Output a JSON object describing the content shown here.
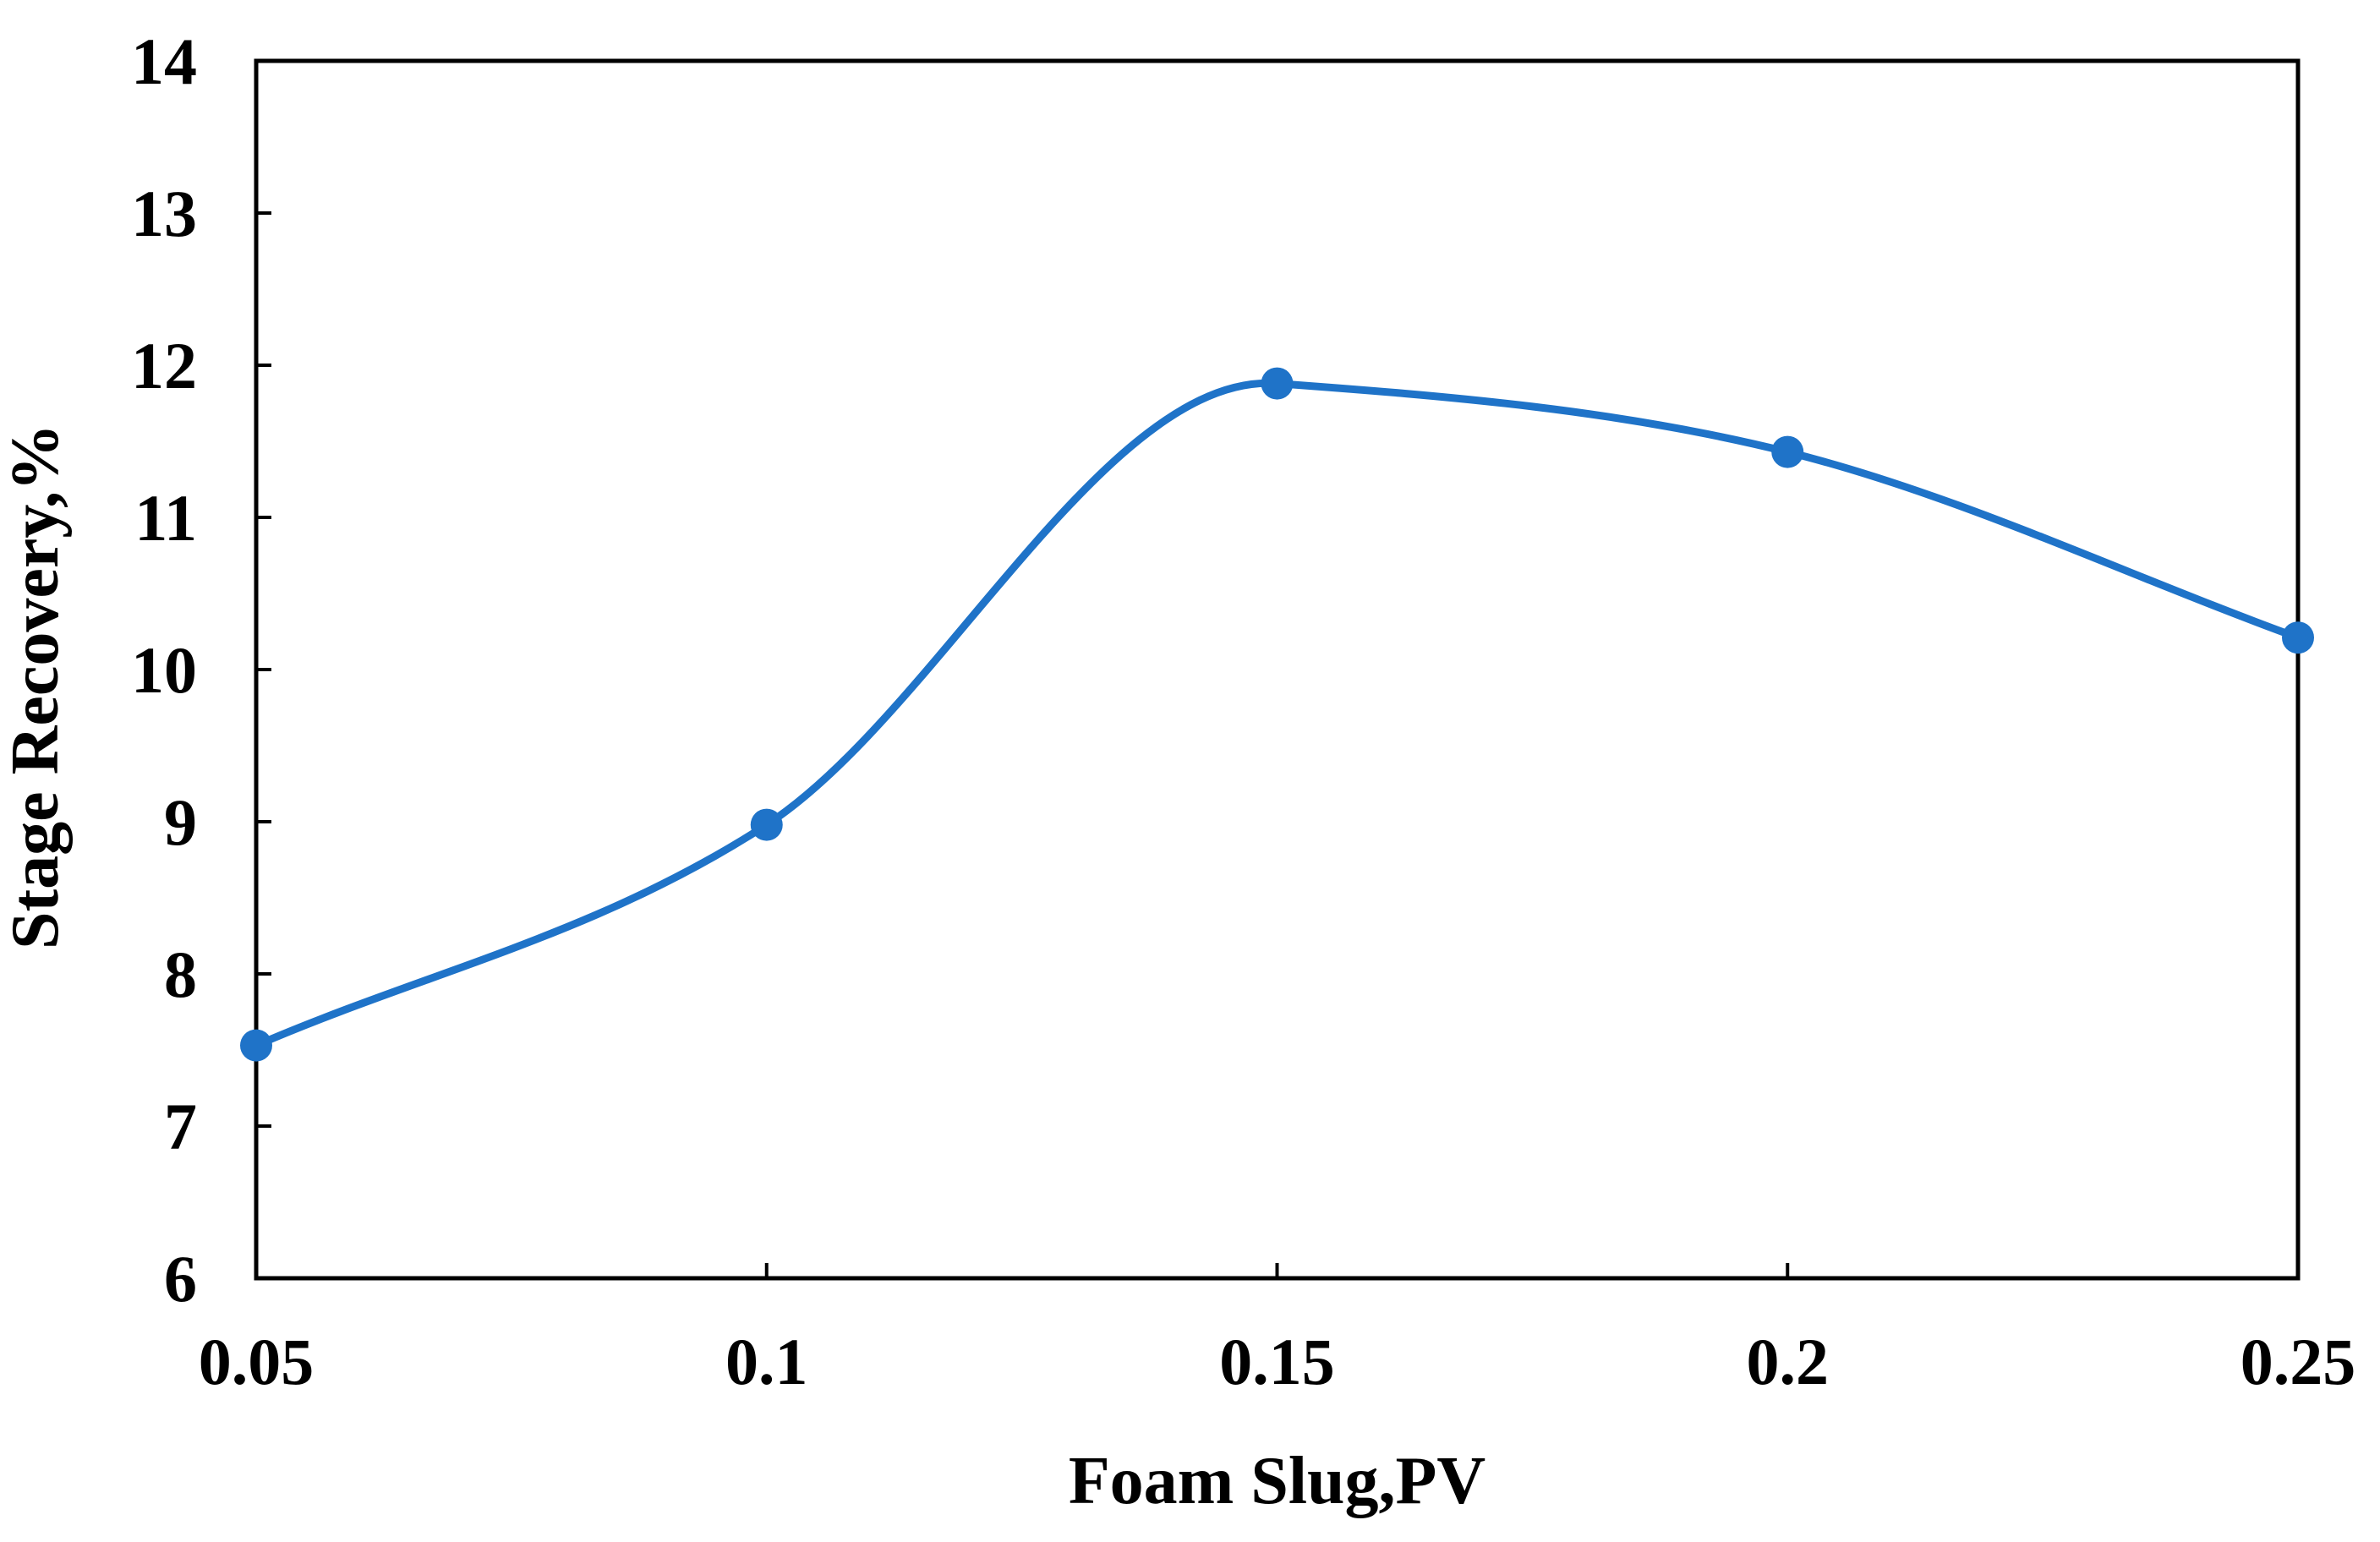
{
  "chart_data": {
    "type": "line",
    "title": "",
    "xlabel": "Foam Slug,PV",
    "ylabel": "Stage Recovery,%",
    "x": [
      0.05,
      0.1,
      0.15,
      0.2,
      0.25
    ],
    "x_tick_labels": [
      "0.05",
      "0.1",
      "0.15",
      "0.2",
      "0.25"
    ],
    "xlim": [
      0.05,
      0.25
    ],
    "ylim": [
      6,
      14
    ],
    "y_ticks": [
      6,
      7,
      8,
      9,
      10,
      11,
      12,
      13,
      14
    ],
    "y_tick_labels": [
      "6",
      "7",
      "8",
      "9",
      "10",
      "11",
      "12",
      "13",
      "14"
    ],
    "grid": false,
    "series": [
      {
        "name": "Stage Recovery",
        "values": [
          7.53,
          8.98,
          11.88,
          11.43,
          10.21
        ],
        "color": "#1F73C8",
        "smooth": true,
        "markers": true
      }
    ]
  }
}
